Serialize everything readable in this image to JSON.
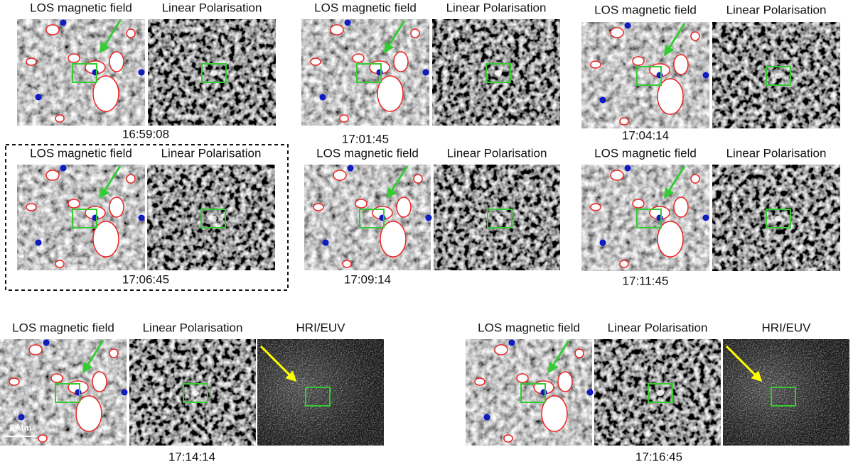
{
  "groups": [
    {
      "panels": [
        "LOS magnetic field",
        "Linear Polarisation"
      ],
      "time": "16:59:08"
    },
    {
      "panels": [
        "LOS magnetic field",
        "Linear Polarisation"
      ],
      "time": "17:01:45"
    },
    {
      "panels": [
        "LOS magnetic field",
        "Linear Polarisation"
      ],
      "time": "17:04:14"
    },
    {
      "panels": [
        "LOS magnetic field",
        "Linear Polarisation"
      ],
      "time": "17:06:45"
    },
    {
      "panels": [
        "LOS magnetic field",
        "Linear Polarisation"
      ],
      "time": "17:09:14"
    },
    {
      "panels": [
        "LOS magnetic field",
        "Linear Polarisation"
      ],
      "time": "17:11:45"
    },
    {
      "panels": [
        "LOS magnetic field",
        "Linear Polarisation",
        "HRI/EUV"
      ],
      "time": "17:14:14"
    },
    {
      "panels": [
        "LOS magnetic field",
        "Linear Polarisation",
        "HRI/EUV"
      ],
      "time": "17:16:45"
    }
  ],
  "scale_bar": "5 Mm"
}
